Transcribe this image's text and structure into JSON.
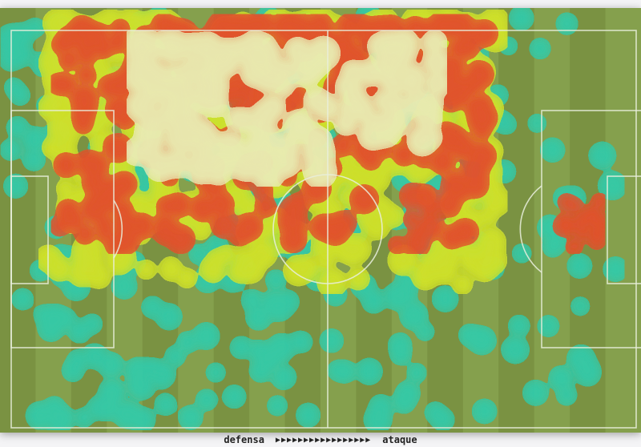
{
  "colors": {
    "pitch_dark": "#7a9242",
    "pitch_light": "#85a04d",
    "lines": "#e9eedd",
    "heat_low": "#35c9a6",
    "heat_mid": "#cfe12a",
    "heat_high": "#e2512c",
    "heat_peak": "#e8eab0"
  },
  "direction": {
    "left_label": "defensa",
    "arrows": "▶▶▶▶▶▶▶▶▶▶▶▶▶▶▶▶▶",
    "right_label": "ataque"
  }
}
